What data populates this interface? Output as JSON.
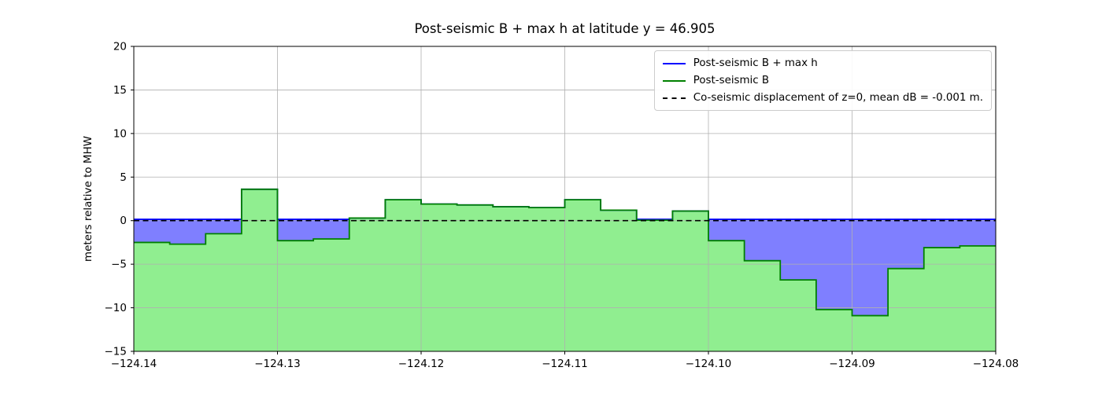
{
  "figure": {
    "background": "#ffffff"
  },
  "chart_data": {
    "type": "area",
    "title": "Post-seismic B + max h at latitude y = 46.905",
    "xlabel": "",
    "ylabel": "meters relative to MHW",
    "xlim": [
      -124.14,
      -124.08
    ],
    "ylim": [
      -15,
      20
    ],
    "grid": true,
    "x_ticks": [
      -124.14,
      -124.13,
      -124.12,
      -124.11,
      -124.1,
      -124.09,
      -124.08
    ],
    "x_tick_labels": [
      "−124.14",
      "−124.13",
      "−124.12",
      "−124.11",
      "−124.10",
      "−124.09",
      "−124.08"
    ],
    "y_ticks": [
      -15,
      -10,
      -5,
      0,
      5,
      10,
      15,
      20
    ],
    "y_tick_labels": [
      "−15",
      "−10",
      "−5",
      "0",
      "5",
      "10",
      "15",
      "20"
    ],
    "step_x_edges": [
      -124.14,
      -124.1375,
      -124.135,
      -124.1325,
      -124.13,
      -124.1275,
      -124.125,
      -124.1225,
      -124.12,
      -124.1175,
      -124.115,
      -124.1125,
      -124.11,
      -124.1075,
      -124.105,
      -124.1025,
      -124.1,
      -124.0975,
      -124.095,
      -124.0925,
      -124.09,
      -124.0875,
      -124.085,
      -124.0825,
      -124.08
    ],
    "series": [
      {
        "name": "Post-seismic B + max h",
        "color": "#0000ff",
        "fill": "rgba(0,0,255,0.5)",
        "values": [
          0.15,
          0.15,
          0.15,
          3.6,
          0.15,
          0.15,
          0.3,
          2.4,
          1.9,
          1.8,
          1.6,
          1.5,
          2.4,
          1.2,
          0.15,
          1.1,
          0.15,
          0.15,
          0.15,
          0.15,
          0.15,
          0.15,
          0.15,
          0.15
        ]
      },
      {
        "name": "Post-seismic B",
        "color": "#008000",
        "fill": "#90ee90",
        "values": [
          -2.5,
          -2.7,
          -1.5,
          3.6,
          -2.3,
          -2.1,
          0.3,
          2.4,
          1.9,
          1.8,
          1.6,
          1.5,
          2.4,
          1.2,
          0.05,
          1.1,
          -2.3,
          -4.6,
          -6.8,
          -10.2,
          -10.9,
          -5.5,
          -3.1,
          -2.9
        ]
      }
    ],
    "dashed_line": {
      "label": "Co-seismic displacement of z=0, mean dB = -0.001 m.",
      "y": 0,
      "color": "#000000"
    },
    "legend": {
      "position": "upper right",
      "entries": [
        {
          "label": "Post-seismic B + max h",
          "color": "#0000ff",
          "dash": false
        },
        {
          "label": "Post-seismic B",
          "color": "#008000",
          "dash": false
        },
        {
          "label": "Co-seismic displacement of z=0, mean dB = -0.001 m.",
          "color": "#000000",
          "dash": true
        }
      ]
    },
    "grid_color": "#b0b0b0",
    "frame_color": "#000000"
  }
}
